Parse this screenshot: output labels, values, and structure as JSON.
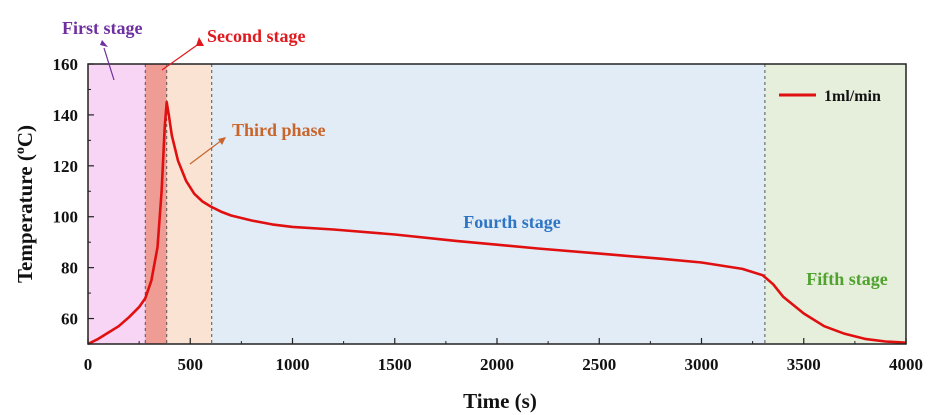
{
  "chart_data": {
    "type": "line",
    "xlabel": "Time (s)",
    "ylabel_main": "Temperature (",
    "ylabel_sup": "o",
    "ylabel_tail": "C)",
    "xlim": [
      0,
      4000
    ],
    "ylim": [
      50,
      160
    ],
    "x_ticks": [
      0,
      500,
      1000,
      1500,
      2000,
      2500,
      3000,
      3500,
      4000
    ],
    "y_ticks": [
      60,
      80,
      100,
      120,
      140,
      160
    ],
    "series": [
      {
        "name": "1ml/min",
        "color": "#e01010",
        "x": [
          0,
          50,
          100,
          150,
          200,
          250,
          280,
          310,
          340,
          360,
          375,
          385,
          395,
          410,
          440,
          480,
          520,
          560,
          600,
          650,
          700,
          800,
          900,
          1000,
          1200,
          1500,
          1800,
          2000,
          2200,
          2500,
          2800,
          3000,
          3200,
          3300,
          3350,
          3400,
          3500,
          3600,
          3700,
          3800,
          3900,
          4000
        ],
        "values": [
          50,
          52,
          54.5,
          57,
          60.5,
          64.5,
          68,
          75,
          88,
          110,
          135,
          145,
          140,
          132,
          122,
          114,
          109,
          106,
          104,
          102,
          100.5,
          98.5,
          97,
          96,
          95,
          93,
          90.5,
          89,
          87.5,
          85.5,
          83.5,
          82,
          79.5,
          77,
          73.5,
          68.5,
          62,
          57,
          54,
          52,
          51,
          50.5
        ]
      }
    ],
    "stages": [
      {
        "label": "First stage",
        "x_start": 0,
        "x_end": 280,
        "fill": "#f8d5f4",
        "label_color": "#6f2fa0"
      },
      {
        "label": "Second stage",
        "x_start": 280,
        "x_end": 385,
        "fill": "#ef9c94",
        "label_color": "#e0191e"
      },
      {
        "label": "Third phase",
        "x_start": 385,
        "x_end": 605,
        "fill": "#fbe3d3",
        "label_color": "#c9652b"
      },
      {
        "label": "Fourth stage",
        "x_start": 605,
        "x_end": 3310,
        "fill": "#e2ecf7",
        "label_color": "#2e75c5"
      },
      {
        "label": "Fifth stage",
        "x_start": 3310,
        "x_end": 4000,
        "fill": "#e6eedc",
        "label_color": "#4fa22e"
      }
    ],
    "stage_boundaries": [
      280,
      385,
      605,
      3310
    ],
    "legend": {
      "label": "1ml/min",
      "position": "top-right"
    }
  }
}
